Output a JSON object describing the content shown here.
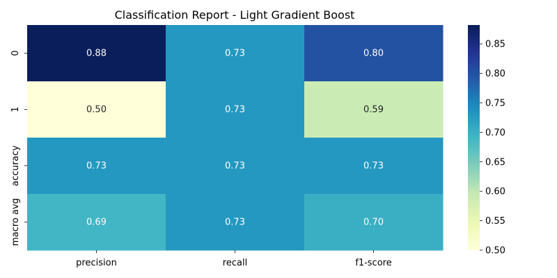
{
  "chart_data": {
    "type": "heatmap",
    "title": "Classification Report - Light Gradient Boost",
    "columns": [
      "precision",
      "recall",
      "f1-score"
    ],
    "rows": [
      "0",
      "1",
      "accuracy",
      "macro avg"
    ],
    "values": [
      [
        0.88,
        0.73,
        0.8
      ],
      [
        0.5,
        0.73,
        0.59
      ],
      [
        0.73,
        0.73,
        0.73
      ],
      [
        0.69,
        0.73,
        0.7
      ]
    ],
    "value_labels": [
      [
        "0.88",
        "0.73",
        "0.80"
      ],
      [
        "0.50",
        "0.73",
        "0.59"
      ],
      [
        "0.73",
        "0.73",
        "0.73"
      ],
      [
        "0.69",
        "0.73",
        "0.70"
      ]
    ],
    "colormap": "YlGnBu",
    "vmin": 0.5,
    "vmax": 0.882,
    "colorbar_ticks": [
      0.5,
      0.55,
      0.6,
      0.65,
      0.7,
      0.75,
      0.8,
      0.85
    ],
    "colorbar_tick_labels": [
      "0.50",
      "0.55",
      "0.60",
      "0.65",
      "0.70",
      "0.75",
      "0.80",
      "0.85"
    ]
  }
}
